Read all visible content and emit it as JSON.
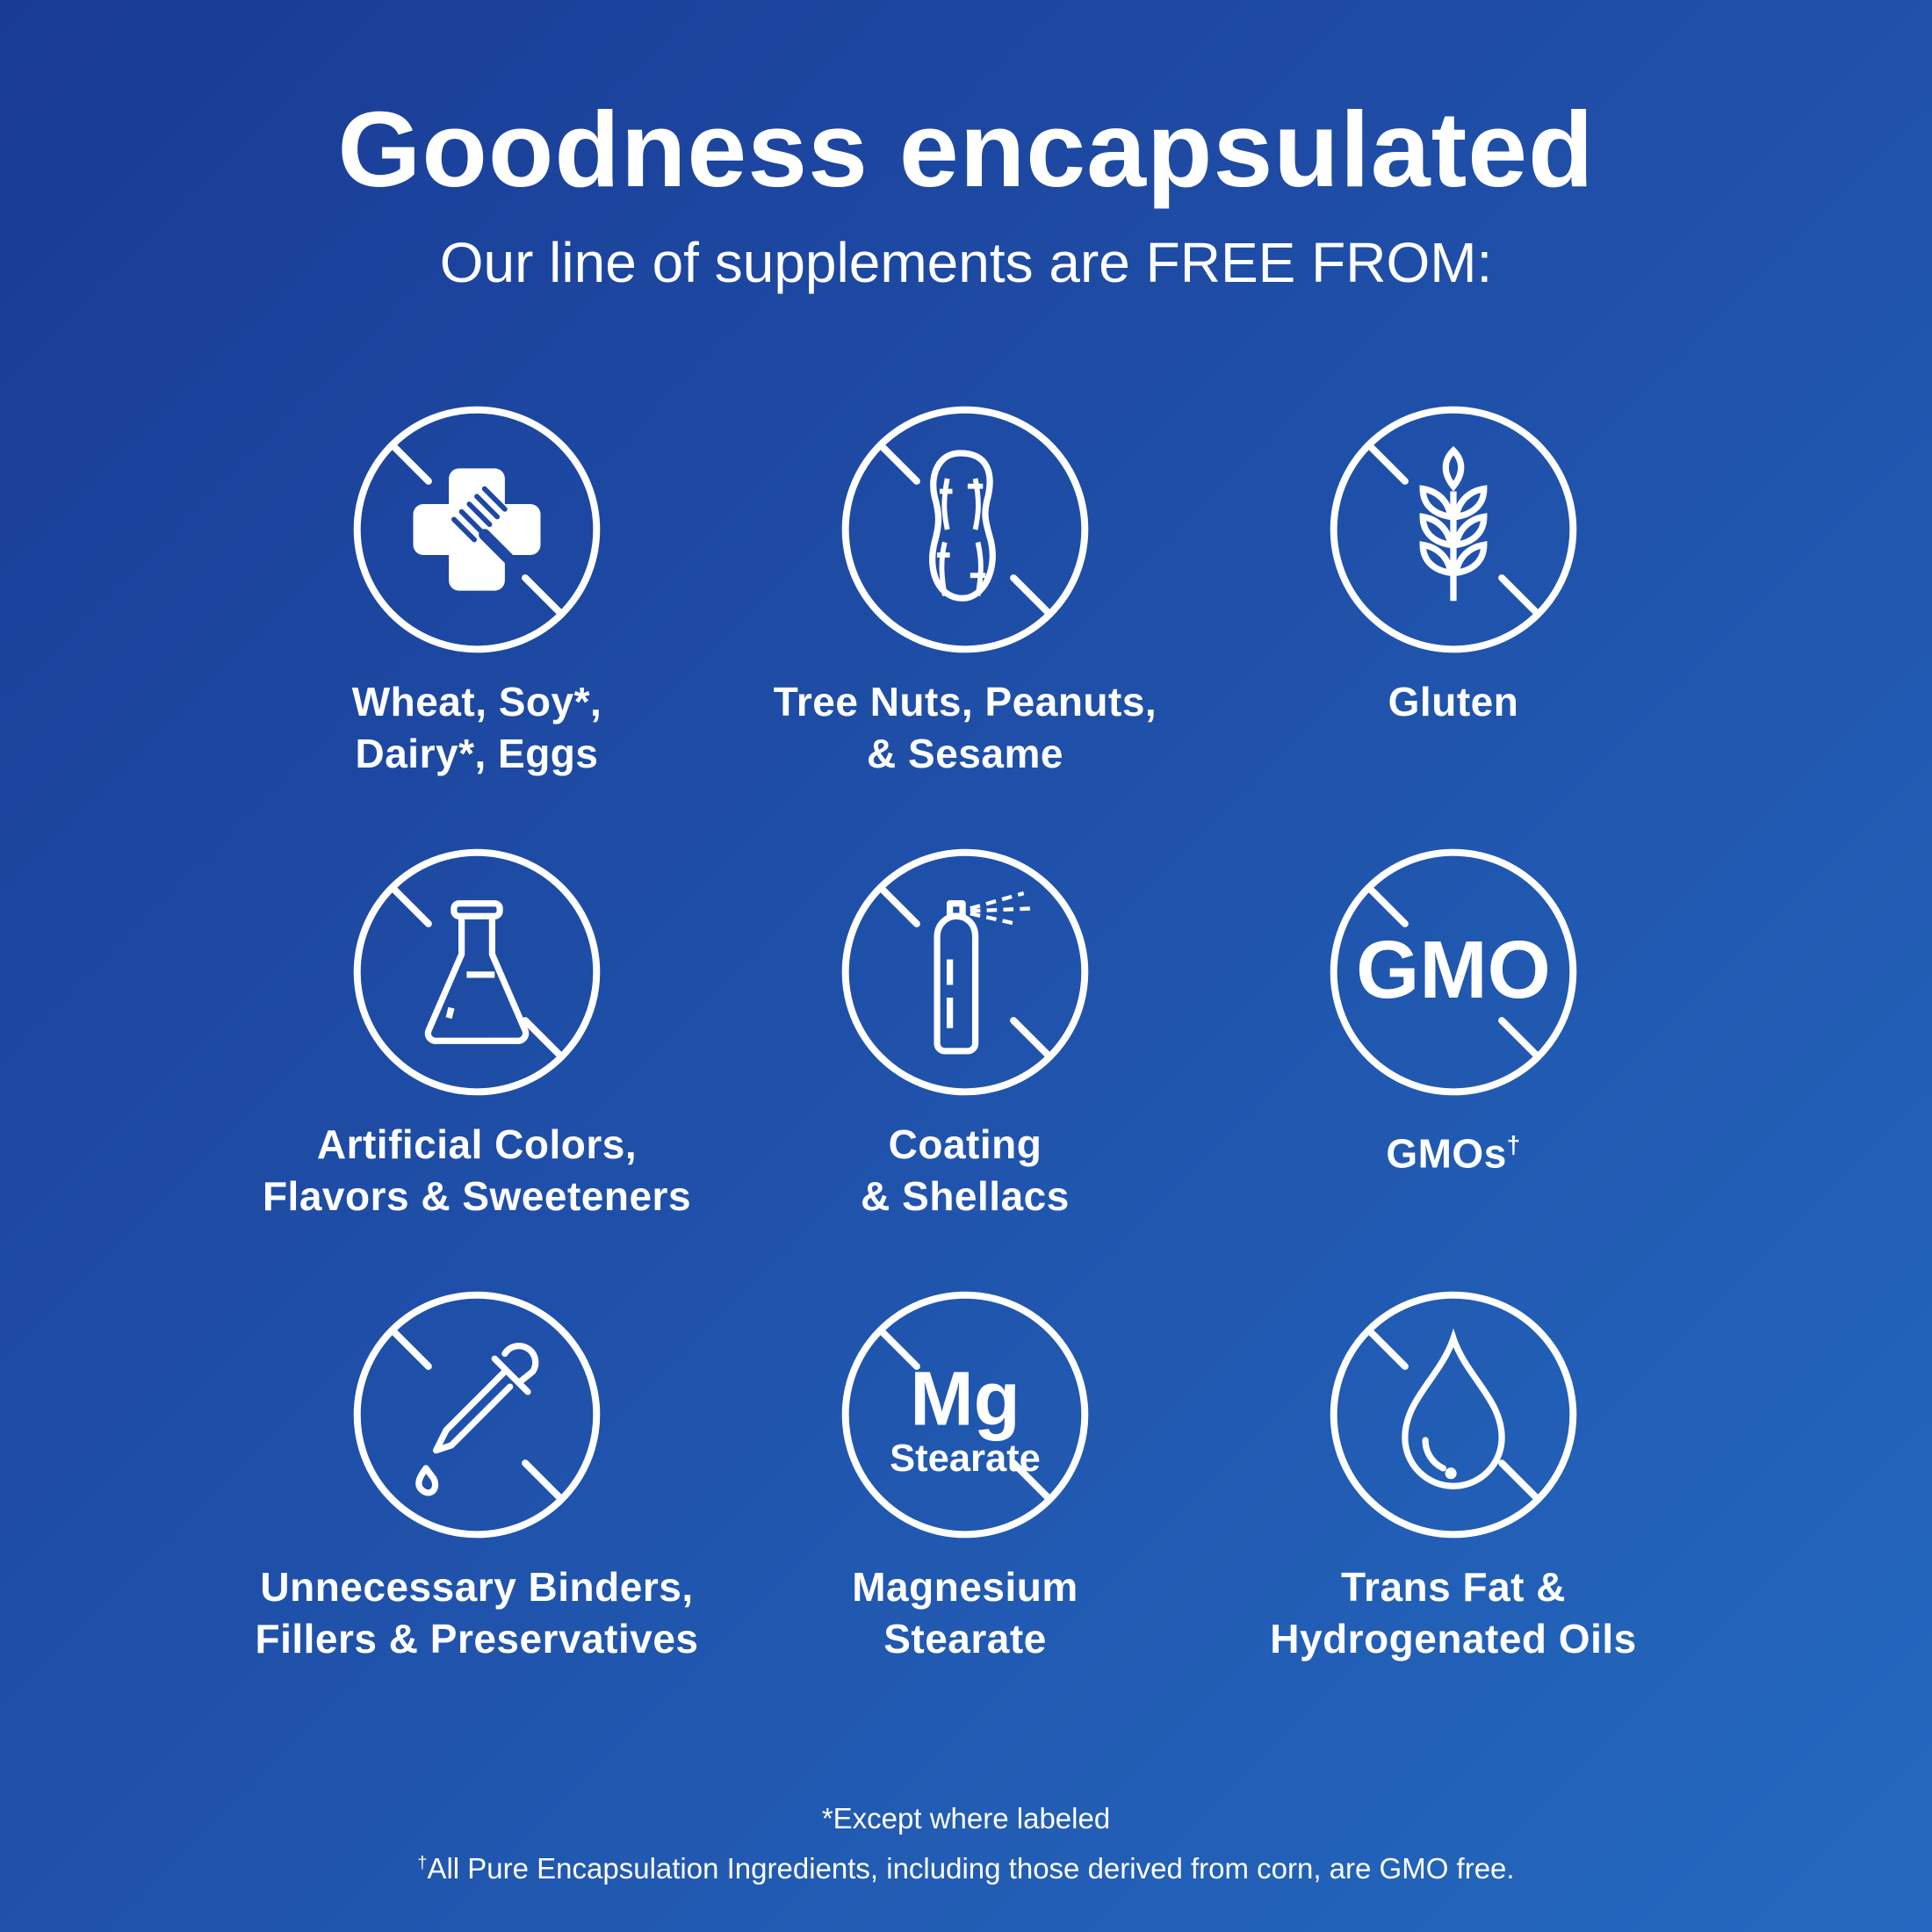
{
  "header": {
    "title": "Goodness encapsulated",
    "subtitle": "Our line of supplements are FREE FROM:"
  },
  "items": [
    {
      "icon": "no-allergens-icon",
      "lines": [
        "Wheat, Soy*,",
        "Dairy*, Eggs"
      ]
    },
    {
      "icon": "no-peanut-icon",
      "lines": [
        "Tree Nuts, Peanuts,",
        "& Sesame"
      ]
    },
    {
      "icon": "no-wheat-icon",
      "lines": [
        "Gluten"
      ]
    },
    {
      "icon": "no-flask-icon",
      "lines": [
        "Artificial Colors,",
        "Flavors & Sweeteners"
      ]
    },
    {
      "icon": "no-spray-can-icon",
      "lines": [
        "Coating",
        "& Shellacs"
      ]
    },
    {
      "icon": "no-gmo-icon",
      "icon_text": "GMO",
      "lines": [
        "GMOs"
      ],
      "sup": "†"
    },
    {
      "icon": "no-dropper-icon",
      "lines": [
        "Unnecessary Binders,",
        "Fillers & Preservatives"
      ]
    },
    {
      "icon": "no-mg-stearate-icon",
      "icon_text": "Mg",
      "icon_subtext": "Stearate",
      "lines": [
        "Magnesium",
        "Stearate"
      ]
    },
    {
      "icon": "no-oil-drop-icon",
      "lines": [
        "Trans Fat &",
        "Hydrogenated Oils"
      ]
    }
  ],
  "footnotes": {
    "asterisk": "*Except where labeled",
    "dagger_mark": "†",
    "dagger": "All Pure Encapsulation Ingredients, including those derived from corn, are GMO free."
  },
  "colors": {
    "bg_top_left": "#193b95",
    "bg_bottom_right": "#2469bf",
    "foreground": "#ffffff"
  }
}
